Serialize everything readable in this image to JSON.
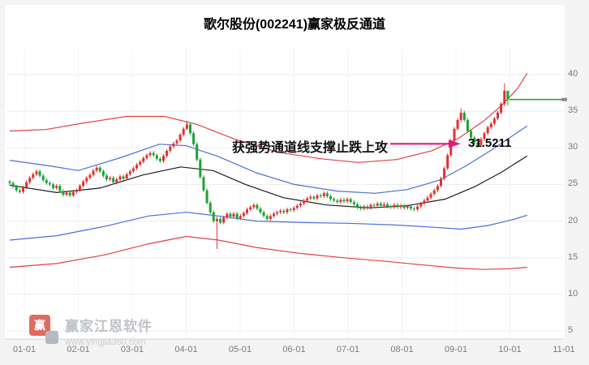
{
  "watermark": {
    "name": "赢家江恩软件",
    "url": "www.yingjia360.com",
    "logo_char": "赢"
  },
  "chart_data": {
    "type": "candlestick",
    "title": "歌尔股份(002241)赢家极反通道",
    "ylim": [
      5,
      40
    ],
    "grid": true,
    "x_axis_labels": [
      "01-01",
      "02-01",
      "03-01",
      "04-01",
      "05-01",
      "06-01",
      "07-01",
      "08-01",
      "09-01",
      "10-01",
      "11-01"
    ],
    "y_ticks": [
      40,
      35,
      30,
      25,
      20,
      15,
      10,
      5
    ],
    "candles": {
      "up_color": "#e03131",
      "down_color": "#1aa333",
      "first_open": 25.4,
      "default_wick": 0.25,
      "closes": [
        25.2,
        24.7,
        24.2,
        24.0,
        24.6,
        25.3,
        25.9,
        26.4,
        26.8,
        26.2,
        25.6,
        25.2,
        25.0,
        24.5,
        24.8,
        24.1,
        23.6,
        23.9,
        23.5,
        24.0,
        24.2,
        24.8,
        25.4,
        25.9,
        26.3,
        26.9,
        27.3,
        26.8,
        26.2,
        25.7,
        25.9,
        25.3,
        25.7,
        26.1,
        25.8,
        26.4,
        26.8,
        27.2,
        27.7,
        28.1,
        28.6,
        29.0,
        29.3,
        29.0,
        28.5,
        28.2,
        28.9,
        29.6,
        30.2,
        30.6,
        31.0,
        31.8,
        32.6,
        33.2,
        32.0,
        30.5,
        28.4,
        26.0,
        24.2,
        22.5,
        21.2,
        20.0,
        20.3,
        19.8,
        20.5,
        21.0,
        20.6,
        21.0,
        20.4,
        20.7,
        21.1,
        21.6,
        21.9,
        22.2,
        21.7,
        21.2,
        20.7,
        20.3,
        20.7,
        21.0,
        21.2,
        21.4,
        21.2,
        21.6,
        21.5,
        21.8,
        22.1,
        22.4,
        22.8,
        23.1,
        23.3,
        23.1,
        23.5,
        23.4,
        23.8,
        23.4,
        23.0,
        22.8,
        22.6,
        22.9,
        22.7,
        23.0,
        22.6,
        22.3,
        21.9,
        21.7,
        22.0,
        21.8,
        22.2,
        22.1,
        22.4,
        22.1,
        22.3,
        22.0,
        21.9,
        22.2,
        21.9,
        22.1,
        21.8,
        22.0,
        21.7,
        21.6,
        22.0,
        22.4,
        22.8,
        23.2,
        23.7,
        24.2,
        24.8,
        25.8,
        27.2,
        29.0,
        31.0,
        32.6,
        33.8,
        34.8,
        33.8,
        32.3,
        31.4,
        30.7,
        30.4,
        31.2,
        32.0,
        32.8,
        33.3,
        34.0,
        34.8,
        36.0,
        37.8,
        36.6
      ],
      "hl_overrides": {
        "53": [
          33.7,
          32.4
        ],
        "62": [
          20.6,
          16.2
        ],
        "135": [
          35.4,
          33.5
        ],
        "140": [
          31.2,
          30.0
        ],
        "148": [
          38.8,
          35.7
        ],
        "149": [
          37.7,
          35.8
        ]
      }
    },
    "channel_lines": [
      {
        "name": "sky-line-red",
        "color": "#e24040",
        "points": [
          [
            -0.27,
            32.3
          ],
          [
            0.4,
            32.5
          ],
          [
            1.1,
            33.4
          ],
          [
            1.9,
            34.3
          ],
          [
            2.6,
            34.3
          ],
          [
            3.2,
            33.2
          ],
          [
            3.9,
            31.2
          ],
          [
            4.7,
            29.4
          ],
          [
            5.5,
            28.5
          ],
          [
            6.2,
            28.0
          ],
          [
            6.9,
            28.4
          ],
          [
            7.55,
            29.6
          ],
          [
            8.05,
            31.3
          ],
          [
            8.5,
            33.6
          ],
          [
            8.85,
            35.8
          ],
          [
            9.15,
            38.2
          ],
          [
            9.32,
            40.2
          ]
        ]
      },
      {
        "name": "life-line-blue-upper",
        "color": "#4a6fd8",
        "points": [
          [
            -0.27,
            28.3
          ],
          [
            0.5,
            27.5
          ],
          [
            1.0,
            26.9
          ],
          [
            1.8,
            28.7
          ],
          [
            2.5,
            30.5
          ],
          [
            3.0,
            30.3
          ],
          [
            3.6,
            28.8
          ],
          [
            4.3,
            26.6
          ],
          [
            5.0,
            25.0
          ],
          [
            5.8,
            24.1
          ],
          [
            6.5,
            23.8
          ],
          [
            7.1,
            24.3
          ],
          [
            7.7,
            25.6
          ],
          [
            8.2,
            27.6
          ],
          [
            8.7,
            29.9
          ],
          [
            9.1,
            31.9
          ],
          [
            9.32,
            33.0
          ]
        ]
      },
      {
        "name": "decision-line-black",
        "color": "#1c1c1c",
        "points": [
          [
            -0.27,
            24.9
          ],
          [
            0.6,
            23.9
          ],
          [
            1.4,
            24.5
          ],
          [
            2.2,
            26.3
          ],
          [
            2.9,
            27.4
          ],
          [
            3.5,
            26.9
          ],
          [
            4.1,
            25.0
          ],
          [
            4.8,
            23.2
          ],
          [
            5.6,
            22.2
          ],
          [
            6.4,
            21.8
          ],
          [
            7.1,
            22.1
          ],
          [
            7.8,
            23.0
          ],
          [
            8.35,
            24.7
          ],
          [
            8.85,
            26.7
          ],
          [
            9.32,
            28.9
          ]
        ]
      },
      {
        "name": "life-line-blue-lower",
        "color": "#4a6fd8",
        "points": [
          [
            -0.27,
            17.4
          ],
          [
            0.6,
            18.0
          ],
          [
            1.5,
            19.3
          ],
          [
            2.3,
            20.7
          ],
          [
            3.0,
            21.2
          ],
          [
            3.6,
            20.7
          ],
          [
            4.3,
            20.0
          ],
          [
            5.2,
            19.8
          ],
          [
            6.0,
            19.7
          ],
          [
            6.8,
            19.5
          ],
          [
            7.5,
            19.2
          ],
          [
            8.1,
            18.9
          ],
          [
            8.6,
            19.4
          ],
          [
            9.1,
            20.3
          ],
          [
            9.32,
            20.8
          ]
        ]
      },
      {
        "name": "ground-line-red",
        "color": "#e24040",
        "points": [
          [
            -0.27,
            13.7
          ],
          [
            0.6,
            14.2
          ],
          [
            1.5,
            15.4
          ],
          [
            2.3,
            16.9
          ],
          [
            3.0,
            17.9
          ],
          [
            3.6,
            17.4
          ],
          [
            4.3,
            16.4
          ],
          [
            5.1,
            15.6
          ],
          [
            5.9,
            15.0
          ],
          [
            6.7,
            14.5
          ],
          [
            7.4,
            14.0
          ],
          [
            8.0,
            13.6
          ],
          [
            8.5,
            13.4
          ],
          [
            9.0,
            13.5
          ],
          [
            9.32,
            13.7
          ]
        ]
      }
    ],
    "current_price_line": {
      "price": 36.6,
      "color": "#2ca23c"
    },
    "annotation": {
      "text": "获强势通道线支撑止跌上攻",
      "price_label": "31.5211",
      "arrow_color": "#e2197e",
      "arrow_price": 30.55
    }
  }
}
